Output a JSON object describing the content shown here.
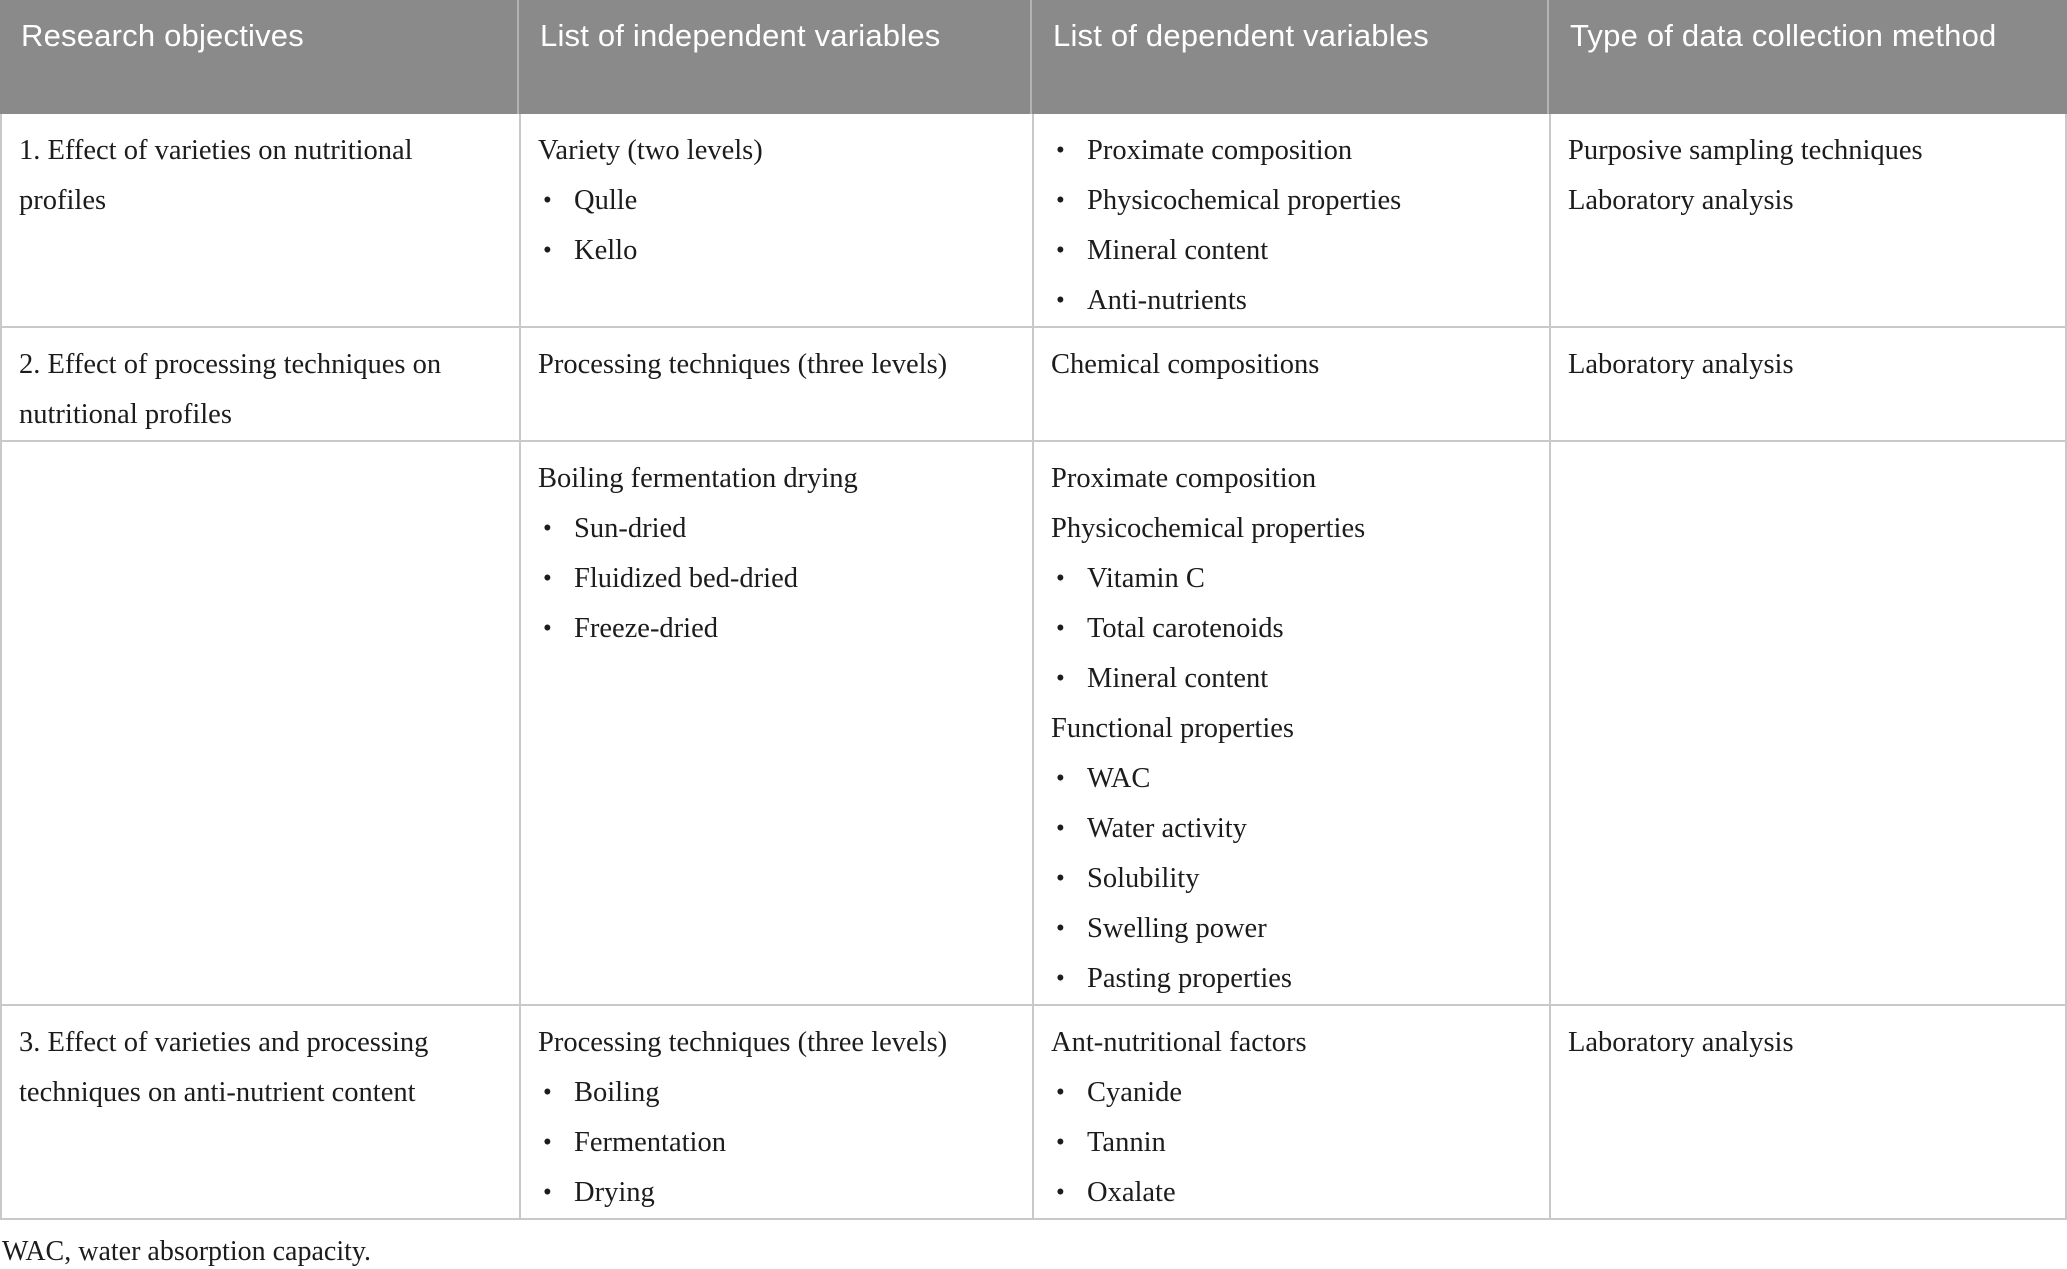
{
  "colors": {
    "header_bg": "#8a8a8a",
    "header_separator": "#b3b3b3",
    "header_text": "#ffffff",
    "border": "#c9c9c9",
    "body_text": "#1c1c1c",
    "background": "#ffffff"
  },
  "table": {
    "columns": [
      "Research objectives",
      "List of independent variables",
      "List of dependent variables",
      "Type of data collection method"
    ],
    "rows": [
      {
        "cells": [
          {
            "blocks": [
              {
                "kind": "text",
                "text": "1. Effect of varieties on nutritional profiles"
              }
            ]
          },
          {
            "blocks": [
              {
                "kind": "text",
                "text": "Variety (two levels)"
              },
              {
                "kind": "bullet",
                "text": "Qulle"
              },
              {
                "kind": "bullet",
                "text": "Kello"
              }
            ]
          },
          {
            "blocks": [
              {
                "kind": "bullet",
                "text": "Proximate composition"
              },
              {
                "kind": "bullet",
                "text": "Physicochemical properties"
              },
              {
                "kind": "bullet",
                "text": "Mineral content"
              },
              {
                "kind": "bullet",
                "text": "Anti-nutrients"
              }
            ]
          },
          {
            "blocks": [
              {
                "kind": "text",
                "text": "Purposive sampling techniques"
              },
              {
                "kind": "text",
                "text": "Laboratory analysis"
              }
            ]
          }
        ]
      },
      {
        "cells": [
          {
            "blocks": [
              {
                "kind": "text",
                "text": "2. Effect of processing techniques on nutritional profiles"
              }
            ]
          },
          {
            "blocks": [
              {
                "kind": "text",
                "text": "Processing techniques (three levels)"
              }
            ]
          },
          {
            "blocks": [
              {
                "kind": "text",
                "text": "Chemical compositions"
              }
            ]
          },
          {
            "blocks": [
              {
                "kind": "text",
                "text": "Laboratory analysis"
              }
            ]
          }
        ]
      },
      {
        "cells": [
          {
            "blocks": []
          },
          {
            "blocks": [
              {
                "kind": "text",
                "text": "Boiling fermentation drying"
              },
              {
                "kind": "bullet",
                "text": "Sun-dried"
              },
              {
                "kind": "bullet",
                "text": "Fluidized bed-dried"
              },
              {
                "kind": "bullet",
                "text": "Freeze-dried"
              }
            ]
          },
          {
            "blocks": [
              {
                "kind": "text",
                "text": "Proximate composition"
              },
              {
                "kind": "text",
                "text": "Physicochemical properties"
              },
              {
                "kind": "bullet",
                "text": "Vitamin C"
              },
              {
                "kind": "bullet",
                "text": "Total carotenoids"
              },
              {
                "kind": "bullet",
                "text": "Mineral content"
              },
              {
                "kind": "text",
                "text": "Functional properties"
              },
              {
                "kind": "bullet",
                "text": "WAC"
              },
              {
                "kind": "bullet",
                "text": "Water activity"
              },
              {
                "kind": "bullet",
                "text": "Solubility"
              },
              {
                "kind": "bullet",
                "text": "Swelling power"
              },
              {
                "kind": "bullet",
                "text": "Pasting properties"
              }
            ]
          },
          {
            "blocks": []
          }
        ]
      },
      {
        "cells": [
          {
            "blocks": [
              {
                "kind": "text",
                "text": "3. Effect of varieties and processing techniques on anti-nutrient content"
              }
            ]
          },
          {
            "blocks": [
              {
                "kind": "text",
                "text": "Processing techniques (three levels)"
              },
              {
                "kind": "bullet",
                "text": "Boiling"
              },
              {
                "kind": "bullet",
                "text": "Fermentation"
              },
              {
                "kind": "bullet",
                "text": "Drying"
              }
            ]
          },
          {
            "blocks": [
              {
                "kind": "text",
                "text": "Ant-nutritional factors"
              },
              {
                "kind": "bullet",
                "text": "Cyanide"
              },
              {
                "kind": "bullet",
                "text": "Tannin"
              },
              {
                "kind": "bullet",
                "text": "Oxalate"
              }
            ]
          },
          {
            "blocks": [
              {
                "kind": "text",
                "text": "Laboratory analysis"
              }
            ]
          }
        ]
      }
    ],
    "footnote": "WAC, water absorption capacity."
  }
}
